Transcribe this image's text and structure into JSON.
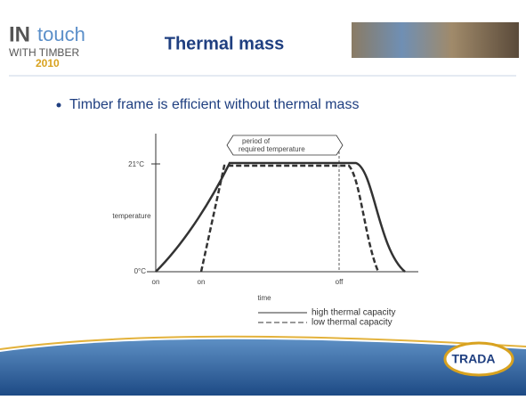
{
  "header": {
    "logo_in": "IN",
    "logo_touch": "touch",
    "logo_with": "WITH TIMBER",
    "logo_year": "2010",
    "title": "Thermal mass"
  },
  "bullet": "Timber frame is efficient without thermal mass",
  "diagram": {
    "period": [
      "period of",
      "required temperature"
    ],
    "high_temp": "21°C",
    "y_label": "temperature",
    "low_temp": "0°C",
    "x_on_1": "on",
    "x_on_2": "on",
    "x_off": "off",
    "x_label": "time",
    "legend": [
      "high thermal capacity",
      "low thermal capacity"
    ]
  },
  "footer": {
    "logo": "TRADA"
  }
}
